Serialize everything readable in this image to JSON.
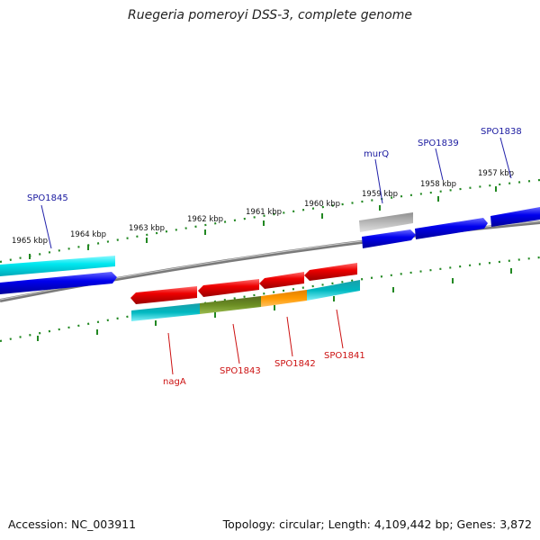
{
  "title": "Ruegeria pomeroyi DSS-3, complete genome",
  "footer": {
    "accession": "Accession: NC_003911",
    "summary": "Topology: circular; Length: 4,109,442 bp; Genes: 3,872"
  },
  "kbp_labels": [
    "1965 kbp",
    "1964 kbp",
    "1963 kbp",
    "1962 kbp",
    "1961 kbp",
    "1960 kbp",
    "1959 kbp",
    "1958 kbp",
    "1957 kbp"
  ],
  "gene_labels_top": [
    "SPO1845",
    "murQ",
    "SPO1839",
    "SPO1838"
  ],
  "gene_labels_bottom": [
    "nagA",
    "SPO1843",
    "SPO1842",
    "SPO1841"
  ],
  "colors": {
    "blue": "#0000ee",
    "cyan": "#00e5ee",
    "red": "#ee0000",
    "teal": "#00b0b8",
    "olive": "#6b8e23",
    "orange": "#ff9900",
    "gray": "#b0b0b0",
    "ruler": "#228822",
    "backbone": "#808080"
  }
}
